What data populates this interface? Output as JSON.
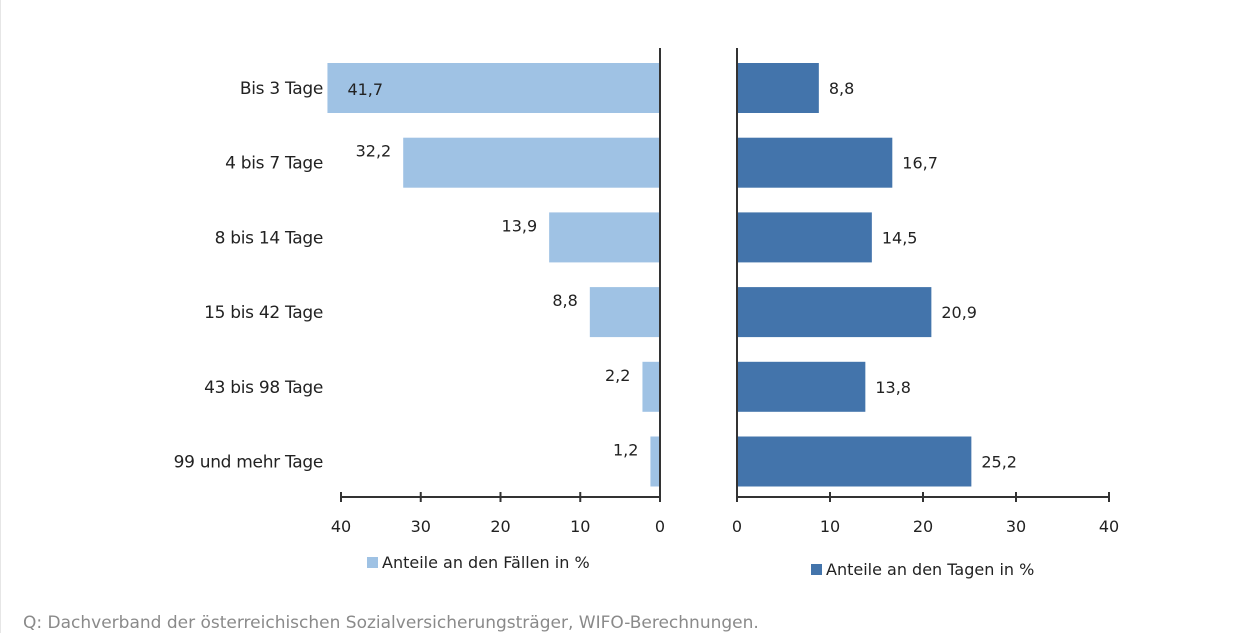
{
  "chart_data": {
    "type": "bar",
    "orientation": "horizontal",
    "layout": "two-panel-butterfly",
    "categories": [
      "Bis 3 Tage",
      "4 bis 7 Tage",
      "8 bis 14 Tage",
      "15 bis 42 Tage",
      "43 bis 98 Tage",
      "99 und mehr Tage"
    ],
    "series": [
      {
        "name": "Anteile an den Fällen in %",
        "values": [
          41.7,
          32.2,
          13.9,
          8.8,
          2.2,
          1.2
        ],
        "labels": [
          "41,7",
          "32,2",
          "13,9",
          "8,8",
          "2,2",
          "1,2"
        ],
        "color": "#9fc2e4",
        "xlim": [
          40,
          0
        ],
        "ticks": [
          "40",
          "30",
          "20",
          "10",
          "0"
        ]
      },
      {
        "name": "Anteile an den Tagen in %",
        "values": [
          8.8,
          16.7,
          14.5,
          20.9,
          13.8,
          25.2
        ],
        "labels": [
          "8,8",
          "16,7",
          "14,5",
          "20,9",
          "13,8",
          "25,2"
        ],
        "color": "#4374ab",
        "xlim": [
          0,
          40
        ],
        "ticks": [
          "0",
          "10",
          "20",
          "30",
          "40"
        ]
      }
    ],
    "legend": "bottom"
  },
  "source": "Q: Dachverband der österreichischen Sozialversicherungsträger, WIFO-Berechnungen."
}
